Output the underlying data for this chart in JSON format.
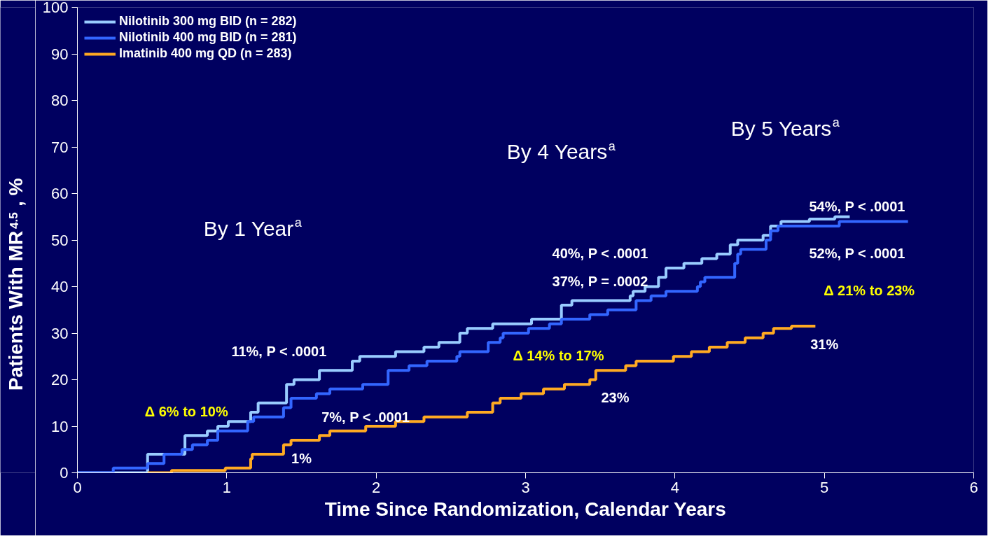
{
  "chart_data": {
    "type": "step",
    "xlabel": "Time Since Randomization, Calendar Years",
    "ylabel": "Patients With MR$^{4.5}$, %",
    "xlim": [
      0,
      6
    ],
    "ylim": [
      0,
      100
    ],
    "xticks": [
      0,
      1,
      2,
      3,
      4,
      5,
      6
    ],
    "yticks": [
      0,
      10,
      20,
      30,
      40,
      50,
      60,
      70,
      80,
      90,
      100
    ],
    "grid": false,
    "legend": "top left",
    "series": [
      {
        "name": "Nilotinib 300 mg BID (n = 282)",
        "color": "#99ccff",
        "x": [
          0,
          0.47,
          0.72,
          0.87,
          0.94,
          1.01,
          1.16,
          1.21,
          1.4,
          1.45,
          1.62,
          1.84,
          1.89,
          2.13,
          2.32,
          2.42,
          2.56,
          2.61,
          2.78,
          3.04,
          3.24,
          3.31,
          3.7,
          3.72,
          3.8,
          3.89,
          3.94,
          4.06,
          4.18,
          4.28,
          4.37,
          4.42,
          4.59,
          4.64,
          4.71,
          4.9,
          5.07,
          5.17
        ],
        "values": [
          0,
          4,
          8,
          9,
          10,
          11,
          13,
          15,
          19,
          20,
          22,
          24,
          25,
          26,
          27,
          28,
          30,
          31,
          32,
          33,
          36,
          37,
          38,
          39,
          40,
          42,
          44,
          45,
          46,
          47,
          49,
          50,
          51,
          53,
          54,
          54.5,
          55,
          55
        ]
      },
      {
        "name": "Nilotinib 400 mg BID (n = 281)",
        "color": "#3366ff",
        "x": [
          0,
          0.24,
          0.47,
          0.58,
          0.7,
          0.77,
          0.87,
          0.94,
          1.14,
          1.18,
          1.38,
          1.43,
          1.6,
          1.69,
          1.91,
          2.08,
          2.22,
          2.34,
          2.54,
          2.56,
          2.75,
          2.83,
          2.85,
          3.02,
          3.16,
          3.24,
          3.43,
          3.55,
          3.74,
          3.84,
          3.94,
          4.15,
          4.17,
          4.2,
          4.4,
          4.42,
          4.44,
          4.61,
          4.64,
          4.69,
          5.1,
          5.56
        ],
        "values": [
          0,
          1,
          2,
          4,
          5,
          6,
          7,
          9,
          11,
          12,
          14,
          16,
          17,
          18,
          19,
          22,
          23,
          24,
          25,
          26,
          28,
          29,
          30,
          31,
          32,
          33,
          34,
          35,
          37,
          38,
          39,
          40,
          41,
          42,
          45,
          47,
          48,
          50,
          52,
          53,
          54,
          54
        ]
      },
      {
        "name": "Imatinib 400 mg QD (n = 283)",
        "color": "#ffaa22",
        "x": [
          0.47,
          0.63,
          0.99,
          1.16,
          1.17,
          1.38,
          1.43,
          1.62,
          1.69,
          1.93,
          2.13,
          2.32,
          2.61,
          2.78,
          2.83,
          2.97,
          3.12,
          3.26,
          3.43,
          3.47,
          3.67,
          3.74,
          3.99,
          4.11,
          4.23,
          4.35,
          4.47,
          4.59,
          4.66,
          4.78,
          4.94
        ],
        "values": [
          0,
          0.5,
          1,
          3,
          4,
          6,
          7,
          8,
          9,
          10,
          11,
          12,
          13,
          15,
          16,
          17,
          18,
          19,
          20,
          22,
          23,
          24,
          25,
          26,
          27,
          28,
          29,
          30,
          31,
          31.5,
          31.5
        ]
      }
    ],
    "annotations": [
      "By 1 Year$^{a}$",
      "By 4 Years$^{a}$",
      "By 5 Years$^{a}$",
      "11%, P < .0001",
      "7%, P < .0001",
      "1%",
      "Δ 6% to 10%",
      "40%, P < .0001",
      "37%, P = .0002",
      "Δ 14% to 17%",
      "23%",
      "54%, P < .0001",
      "52%, P < .0001",
      "Δ 21% to 23%",
      "31%"
    ]
  }
}
